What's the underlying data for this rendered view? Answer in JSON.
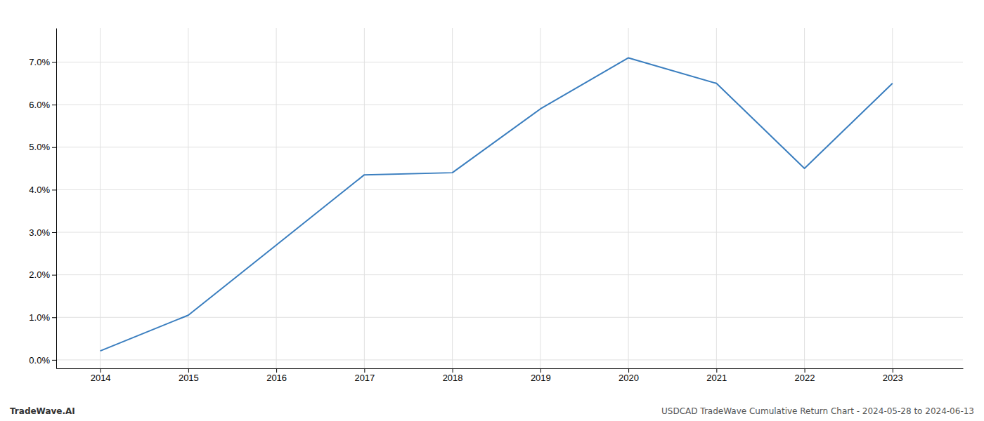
{
  "chart_data": {
    "type": "line",
    "x": [
      2014,
      2015,
      2016,
      2017,
      2018,
      2019,
      2020,
      2021,
      2022,
      2023
    ],
    "values": [
      0.0021,
      0.0105,
      0.027,
      0.0435,
      0.044,
      0.059,
      0.071,
      0.065,
      0.045,
      0.065
    ],
    "color": "#3a7ebf",
    "xlim": [
      2013.5,
      2023.8
    ],
    "ylim": [
      -0.002,
      0.078
    ],
    "xticks": [
      2014,
      2015,
      2016,
      2017,
      2018,
      2019,
      2020,
      2021,
      2022,
      2023
    ],
    "yticks": [
      {
        "value": 0.0,
        "label": "0.0%"
      },
      {
        "value": 0.01,
        "label": "1.0%"
      },
      {
        "value": 0.02,
        "label": "2.0%"
      },
      {
        "value": 0.03,
        "label": "3.0%"
      },
      {
        "value": 0.04,
        "label": "4.0%"
      },
      {
        "value": 0.05,
        "label": "5.0%"
      },
      {
        "value": 0.06,
        "label": "6.0%"
      },
      {
        "value": 0.07,
        "label": "7.0%"
      }
    ],
    "grid": true,
    "annotations": [
      "TradeWave.AI",
      "USDCAD TradeWave Cumulative Return Chart - 2024-05-28 to 2024-06-13"
    ]
  }
}
